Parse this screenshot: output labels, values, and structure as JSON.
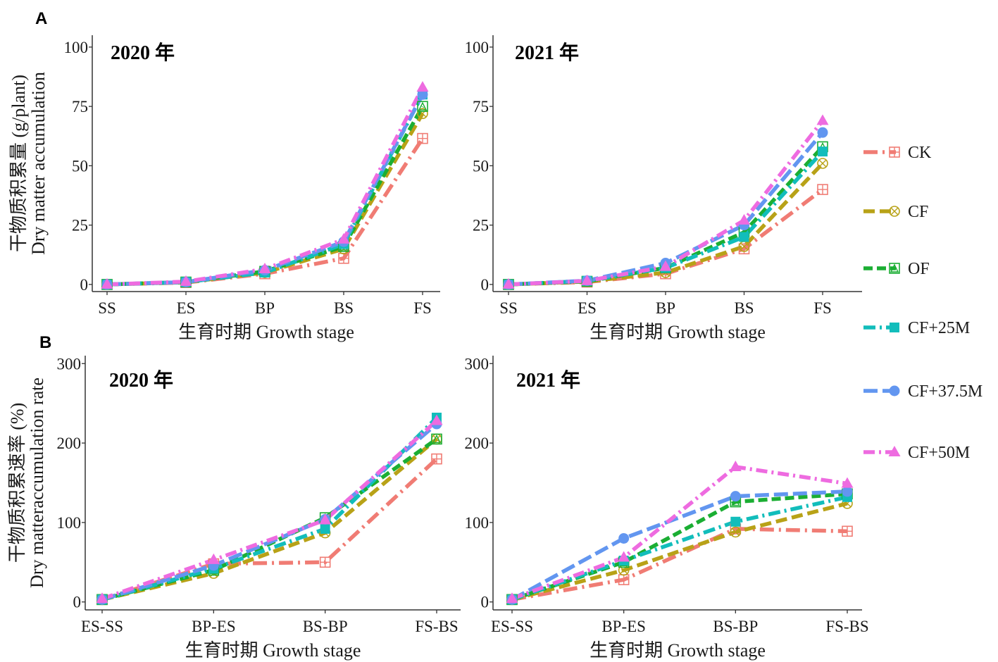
{
  "legend": {
    "items": [
      {
        "label": "CK",
        "color": "#F07C74",
        "marker": "square-plus"
      },
      {
        "label": "CF",
        "color": "#B8A217",
        "marker": "circle-x"
      },
      {
        "label": "OF",
        "color": "#1BAE33",
        "marker": "square-triangle"
      },
      {
        "label": "CF+25M",
        "color": "#12BDBB",
        "marker": "filled-square"
      },
      {
        "label": "CF+37.5M",
        "color": "#6296F0",
        "marker": "filled-circle"
      },
      {
        "label": "CF+50M",
        "color": "#EE6BE0",
        "marker": "filled-triangle"
      }
    ]
  },
  "section_labels": [
    "A",
    "B"
  ],
  "chart_data": [
    {
      "type": "line",
      "panel": "A",
      "title": "2020 年",
      "xlabel": "生育时期 Growth stage",
      "ylabel": [
        "干物质积累量 (g/plant)",
        "Dry matter accumulation"
      ],
      "categories": [
        "SS",
        "ES",
        "BP",
        "BS",
        "FS"
      ],
      "ylim": [
        -3,
        105
      ],
      "yticks": [
        0,
        25,
        50,
        75,
        100
      ],
      "grid": false,
      "series": [
        {
          "name": "CK",
          "values": [
            0,
            0.8,
            4.5,
            11,
            61.5
          ]
        },
        {
          "name": "CF",
          "values": [
            0,
            0.9,
            5,
            15,
            72
          ]
        },
        {
          "name": "OF",
          "values": [
            0,
            1,
            5.5,
            16,
            75
          ]
        },
        {
          "name": "CF+25M",
          "values": [
            0,
            1,
            5,
            17,
            80
          ]
        },
        {
          "name": "CF+37.5M",
          "values": [
            0,
            1,
            6,
            18,
            80
          ]
        },
        {
          "name": "CF+50M",
          "values": [
            0,
            1.2,
            6.5,
            19,
            83
          ]
        }
      ]
    },
    {
      "type": "line",
      "panel": "A",
      "title": "2021 年",
      "xlabel": "生育时期 Growth stage",
      "ylabel": [],
      "categories": [
        "SS",
        "ES",
        "BP",
        "BS",
        "FS"
      ],
      "ylim": [
        -3,
        105
      ],
      "yticks": [
        0,
        25,
        50,
        75,
        100
      ],
      "grid": false,
      "series": [
        {
          "name": "CK",
          "values": [
            0,
            1,
            4.5,
            15,
            40
          ]
        },
        {
          "name": "CF",
          "values": [
            0,
            1.2,
            5,
            16,
            51
          ]
        },
        {
          "name": "OF",
          "values": [
            0,
            1.3,
            7,
            22,
            58
          ]
        },
        {
          "name": "CF+25M",
          "values": [
            0,
            1.5,
            7,
            20,
            56
          ]
        },
        {
          "name": "CF+37.5M",
          "values": [
            0,
            1.6,
            9,
            25,
            64
          ]
        },
        {
          "name": "CF+50M",
          "values": [
            0,
            1.5,
            7.5,
            27,
            69
          ]
        }
      ]
    },
    {
      "type": "line",
      "panel": "B",
      "title": "2020 年",
      "xlabel": "生育时期 Growth stage",
      "ylabel": [
        "干物质积累速率 (%)",
        "Dry matteraccumulation rate"
      ],
      "categories": [
        "ES-SS",
        "BP-ES",
        "BS-BP",
        "FS-BS"
      ],
      "ylim": [
        -10,
        310
      ],
      "yticks": [
        0,
        100,
        200,
        300
      ],
      "grid": false,
      "series": [
        {
          "name": "CK",
          "values": [
            3,
            48,
            50,
            180
          ]
        },
        {
          "name": "CF",
          "values": [
            3,
            36,
            87,
            205
          ]
        },
        {
          "name": "OF",
          "values": [
            3,
            40,
            106,
            205
          ]
        },
        {
          "name": "CF+25M",
          "values": [
            3,
            42,
            92,
            232
          ]
        },
        {
          "name": "CF+37.5M",
          "values": [
            3,
            46,
            104,
            224
          ]
        },
        {
          "name": "CF+50M",
          "values": [
            4,
            53,
            103,
            228
          ]
        }
      ]
    },
    {
      "type": "line",
      "panel": "B",
      "title": "2021 年",
      "xlabel": "生育时期 Growth stage",
      "ylabel": [],
      "categories": [
        "ES-SS",
        "BP-ES",
        "BS-BP",
        "FS-BS"
      ],
      "ylim": [
        -10,
        310
      ],
      "yticks": [
        0,
        100,
        200,
        300
      ],
      "grid": false,
      "series": [
        {
          "name": "CK",
          "values": [
            3,
            28,
            92,
            89
          ]
        },
        {
          "name": "CF",
          "values": [
            3,
            40,
            88,
            124
          ]
        },
        {
          "name": "OF",
          "values": [
            3,
            50,
            126,
            136
          ]
        },
        {
          "name": "CF+25M",
          "values": [
            3,
            52,
            101,
            132
          ]
        },
        {
          "name": "CF+37.5M",
          "values": [
            3,
            80,
            133,
            139
          ]
        },
        {
          "name": "CF+50M",
          "values": [
            4,
            56,
            170,
            149
          ]
        }
      ]
    }
  ]
}
